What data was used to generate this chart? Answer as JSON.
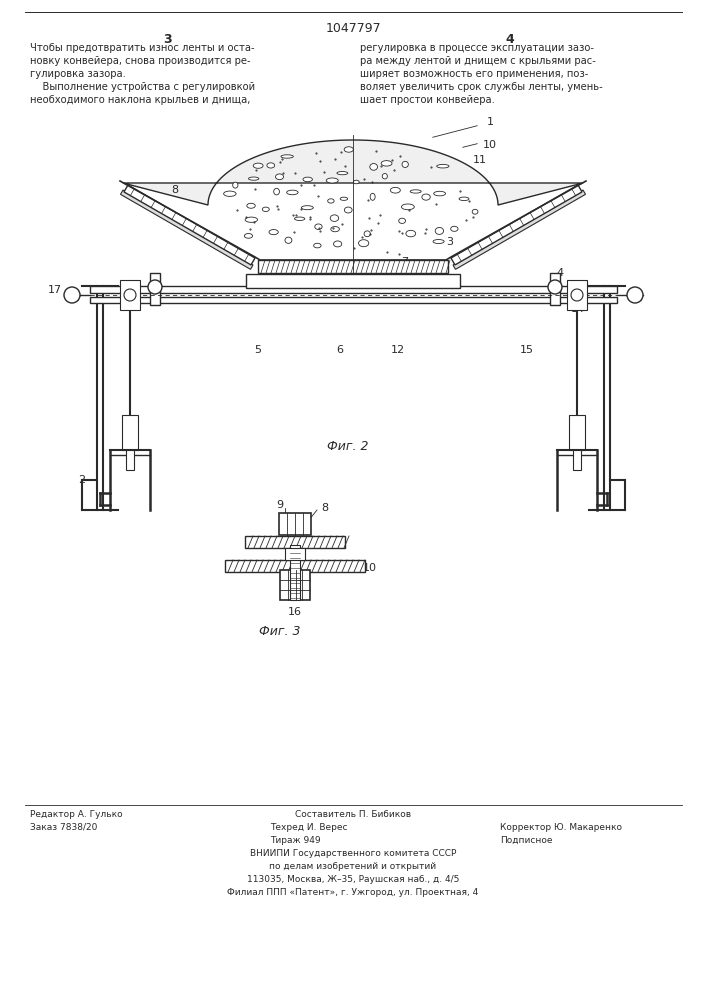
{
  "patent_number": "1047797",
  "page_left": "3",
  "page_right": "4",
  "text_left": [
    "Чтобы предотвратить износ ленты и оста-",
    "новку конвейера, снова производится ре-",
    "гулировка зазора.",
    "    Выполнение устройства с регулировкой",
    "необходимого наклона крыльев и днища,"
  ],
  "text_right": [
    "регулировка в процессе эксплуатации зазо-",
    "ра между лентой и днищем с крыльями рас-",
    "ширяет возможность его применения, поз-",
    "воляет увеличить срок службы ленты, умень-",
    "шает простои конвейера."
  ],
  "fig2_caption": "Фиг. 2",
  "fig3_caption": "Фиг. 3",
  "footer_col1_line1": "Редактор А. Гулько",
  "footer_col1_line2": "Заказ 7838/20",
  "footer_col2_line1": "Составитель П. Бибиков",
  "footer_col2_line2": "Техред И. Верес",
  "footer_col2_line3": "Тираж 949",
  "footer_col3_line1": "Корректор Ю. Макаренко",
  "footer_col3_line2": "Подписное",
  "footer_center1": "ВНИИПИ Государственного комитета СССР",
  "footer_center2": "по делам изобретений и открытий",
  "footer_center3": "113035, Москва, Ж–35, Раушская наб., д. 4/5",
  "footer_center4": "Филиал ППП «Патент», г. Ужгород, ул. Проектная, 4",
  "bg_color": "#ffffff",
  "line_color": "#2a2a2a"
}
